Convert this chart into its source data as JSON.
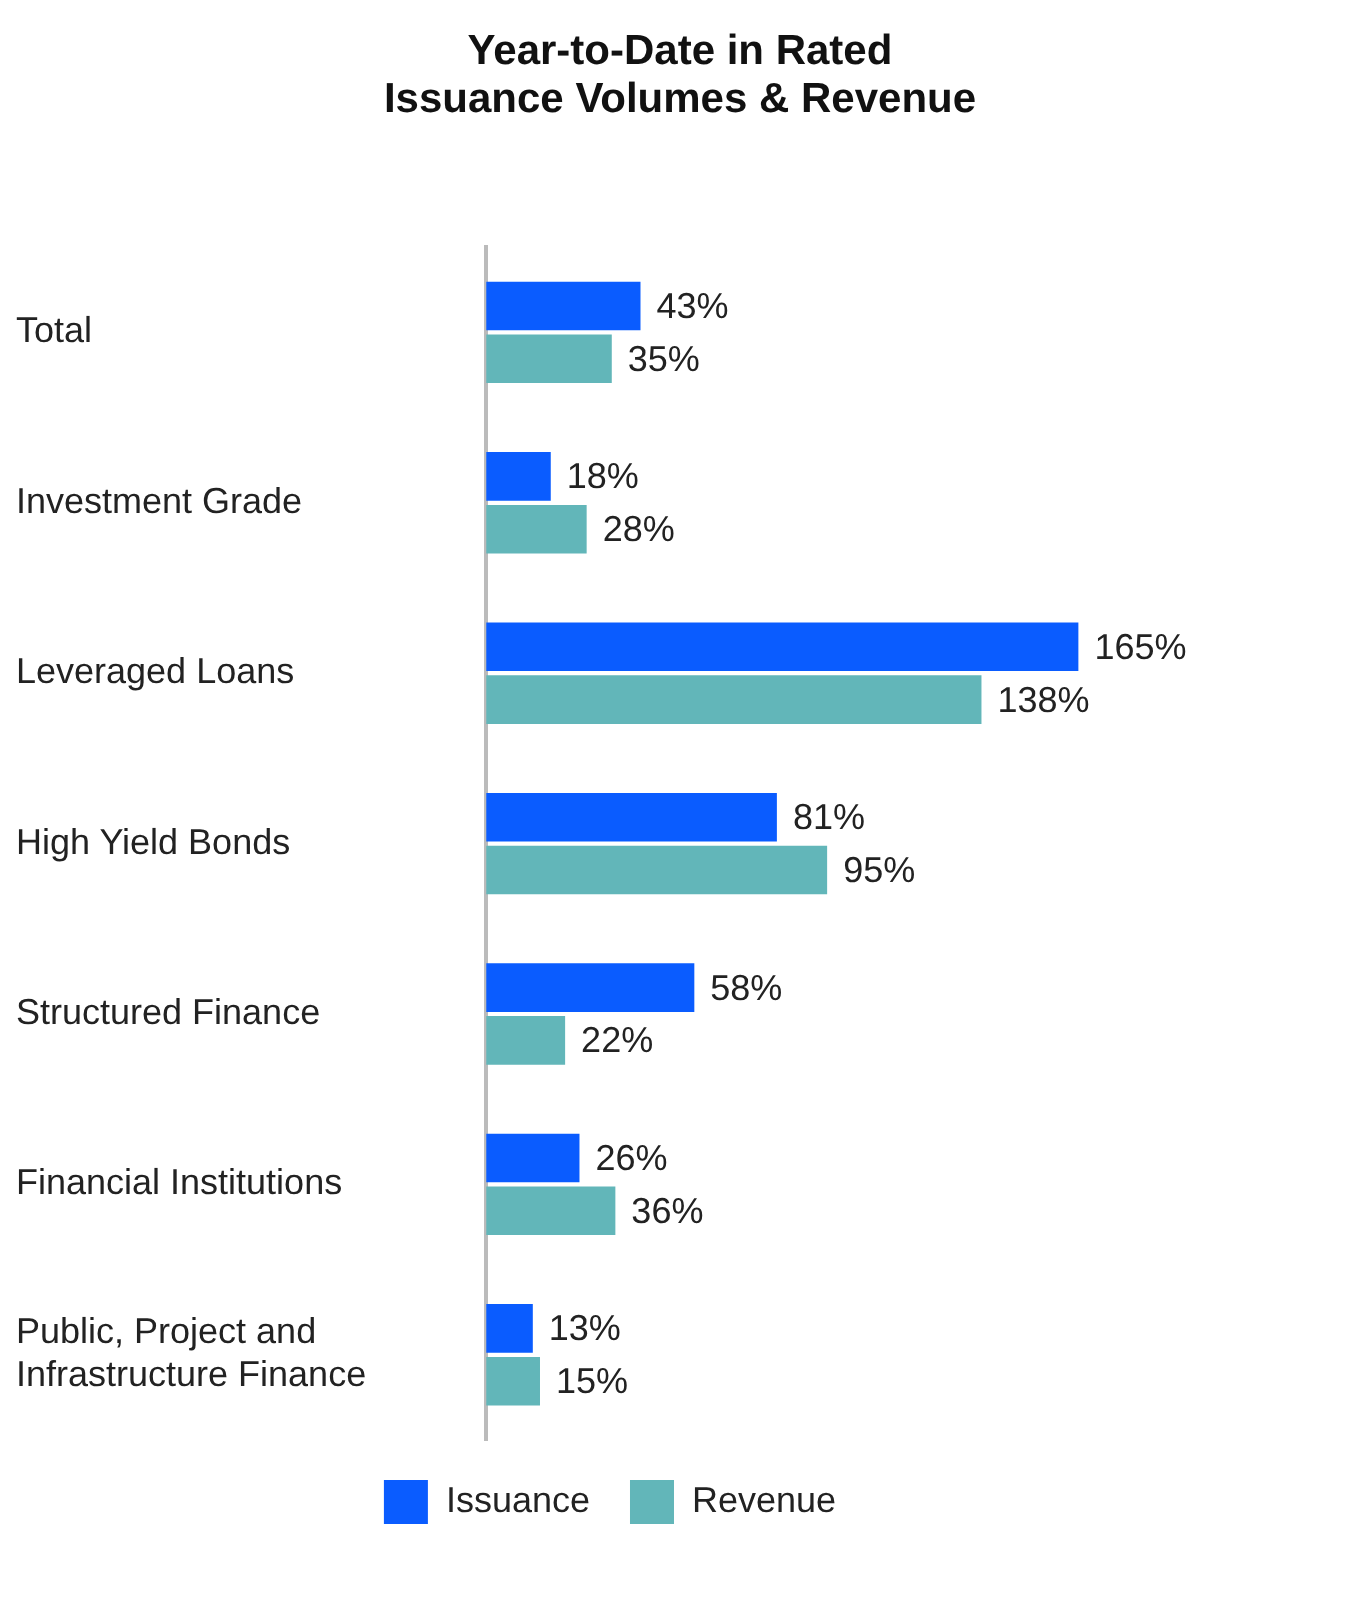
{
  "chart_data": {
    "type": "bar",
    "orientation": "horizontal",
    "title": "Year-to-Date in Rated Issuance Volumes & Revenue",
    "categories": [
      "Total",
      "Investment Grade",
      "Leveraged Loans",
      "High Yield Bonds",
      "Structured Finance",
      "Financial Institutions",
      "Public, Project and Infrastructure Finance"
    ],
    "series": [
      {
        "name": "Issuance",
        "color": "#0a5cff",
        "values": [
          43,
          18,
          165,
          81,
          58,
          26,
          13
        ],
        "value_labels": [
          "43%",
          "18%",
          "165%",
          "81%",
          "58%",
          "26%",
          "13%"
        ]
      },
      {
        "name": "Revenue",
        "color": "#62b6b9",
        "values": [
          35,
          28,
          138,
          95,
          22,
          36,
          15
        ],
        "value_labels": [
          "35%",
          "28%",
          "138%",
          "95%",
          "22%",
          "36%",
          "15%"
        ]
      }
    ],
    "grid": false,
    "legend": "bottom"
  }
}
